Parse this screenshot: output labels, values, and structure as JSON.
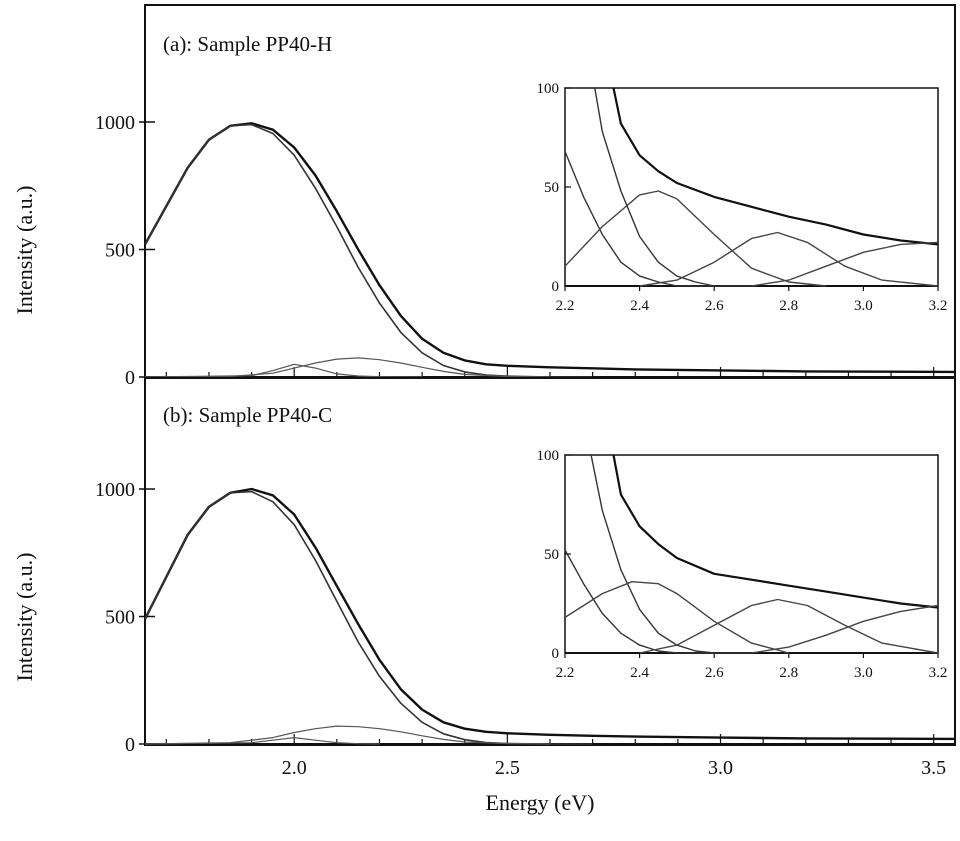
{
  "chart_data": [
    {
      "type": "line",
      "title": "(a): Sample PP40-H",
      "xlabel": "",
      "ylabel": "Intensity (a.u.)",
      "xlim": [
        1.65,
        3.55
      ],
      "ylim": [
        0,
        1000
      ],
      "yticks": [
        0,
        500,
        1000
      ],
      "ytick_labels": [
        "0",
        "500",
        "1000"
      ],
      "xticks": [
        2.0,
        2.5,
        3.0,
        3.5
      ],
      "grid": false,
      "series": [
        {
          "x": [
            1.65,
            1.75,
            1.8,
            1.85,
            1.9,
            1.95,
            2.0,
            2.05,
            2.1,
            2.15,
            2.2,
            2.25,
            2.3,
            2.35,
            2.4,
            2.45,
            2.5,
            2.6,
            2.7,
            2.8,
            3.0,
            3.2,
            3.55
          ],
          "values": [
            520,
            820,
            930,
            985,
            995,
            970,
            900,
            790,
            650,
            500,
            360,
            240,
            150,
            95,
            65,
            50,
            44,
            38,
            34,
            30,
            26,
            22,
            20
          ]
        },
        {
          "x": [
            1.65,
            1.75,
            1.8,
            1.85,
            1.9,
            1.95,
            2.0,
            2.05,
            2.1,
            2.15,
            2.2,
            2.25,
            2.3,
            2.35,
            2.4,
            2.45,
            2.5,
            2.6,
            2.7
          ],
          "values": [
            520,
            820,
            930,
            985,
            990,
            955,
            870,
            740,
            590,
            430,
            290,
            175,
            95,
            45,
            20,
            8,
            3,
            0,
            0
          ]
        },
        {
          "x": [
            1.65,
            1.9,
            1.95,
            2.0,
            2.05,
            2.1,
            2.15,
            2.2,
            2.3
          ],
          "values": [
            0,
            5,
            25,
            50,
            35,
            12,
            4,
            1,
            0
          ]
        },
        {
          "x": [
            1.65,
            1.85,
            1.95,
            2.0,
            2.05,
            2.1,
            2.15,
            2.2,
            2.25,
            2.3,
            2.35,
            2.4,
            2.5,
            2.6
          ],
          "values": [
            0,
            2,
            15,
            35,
            55,
            70,
            75,
            68,
            55,
            38,
            22,
            10,
            2,
            0
          ]
        }
      ],
      "inset": {
        "xlim": [
          2.2,
          3.2
        ],
        "ylim": [
          0,
          100
        ],
        "xticks": [
          2.2,
          2.4,
          2.6,
          2.8,
          3.0,
          3.2
        ],
        "xtick_labels": [
          "2.2",
          "2.4",
          "2.6",
          "2.8",
          "3.0",
          "3.2"
        ],
        "yticks": [
          0,
          50,
          100
        ],
        "ytick_labels": [
          "0",
          "50",
          "100"
        ],
        "series": [
          {
            "x": [
              2.33,
              2.35,
              2.4,
              2.45,
              2.5,
              2.6,
              2.7,
              2.8,
              2.9,
              3.0,
              3.1,
              3.2
            ],
            "values": [
              100,
              82,
              66,
              58,
              52,
              45,
              40,
              35,
              31,
              26,
              23,
              21
            ]
          },
          {
            "x": [
              2.28,
              2.3,
              2.35,
              2.4,
              2.45,
              2.5,
              2.55,
              2.6,
              2.7
            ],
            "values": [
              100,
              78,
              48,
              25,
              12,
              5,
              2,
              0,
              0
            ]
          },
          {
            "x": [
              2.2,
              2.25,
              2.3,
              2.35,
              2.4,
              2.45,
              2.5,
              2.6
            ],
            "values": [
              68,
              45,
              26,
              12,
              5,
              2,
              0,
              0
            ]
          },
          {
            "x": [
              2.2,
              2.3,
              2.4,
              2.45,
              2.5,
              2.6,
              2.7,
              2.8,
              2.9
            ],
            "values": [
              10,
              30,
              46,
              48,
              44,
              26,
              9,
              2,
              0
            ]
          },
          {
            "x": [
              2.4,
              2.5,
              2.6,
              2.7,
              2.77,
              2.85,
              2.95,
              3.05,
              3.2
            ],
            "values": [
              0,
              3,
              12,
              24,
              27,
              22,
              10,
              3,
              0
            ]
          },
          {
            "x": [
              2.7,
              2.8,
              2.9,
              3.0,
              3.1,
              3.2
            ],
            "values": [
              0,
              3,
              10,
              17,
              21,
              22
            ]
          }
        ]
      }
    },
    {
      "type": "line",
      "title": "(b): Sample PP40-C",
      "xlabel": "Energy (eV)",
      "ylabel": "Intensity (a.u.)",
      "xlim": [
        1.65,
        3.55
      ],
      "ylim": [
        0,
        1000
      ],
      "yticks": [
        0,
        500,
        1000
      ],
      "ytick_labels": [
        "0",
        "500",
        "1000"
      ],
      "xticks": [
        2.0,
        2.5,
        3.0,
        3.5
      ],
      "xtick_labels": [
        "2.0",
        "2.5",
        "3.0",
        "3.5"
      ],
      "grid": false,
      "series": [
        {
          "x": [
            1.65,
            1.75,
            1.8,
            1.85,
            1.9,
            1.95,
            2.0,
            2.05,
            2.1,
            2.15,
            2.2,
            2.25,
            2.3,
            2.35,
            2.4,
            2.45,
            2.5,
            2.6,
            2.7,
            2.8,
            3.0,
            3.2,
            3.55
          ],
          "values": [
            490,
            820,
            930,
            985,
            1000,
            975,
            900,
            770,
            620,
            470,
            330,
            215,
            135,
            85,
            60,
            48,
            42,
            36,
            32,
            29,
            25,
            22,
            20
          ]
        },
        {
          "x": [
            1.65,
            1.75,
            1.8,
            1.85,
            1.9,
            1.95,
            2.0,
            2.05,
            2.1,
            2.15,
            2.2,
            2.25,
            2.3,
            2.35,
            2.4,
            2.45,
            2.5,
            2.6,
            2.7
          ],
          "values": [
            490,
            820,
            930,
            985,
            990,
            950,
            860,
            720,
            560,
            400,
            265,
            160,
            85,
            40,
            17,
            6,
            2,
            0,
            0
          ]
        },
        {
          "x": [
            1.65,
            1.9,
            1.95,
            2.0,
            2.05,
            2.1,
            2.15,
            2.2
          ],
          "values": [
            0,
            5,
            15,
            25,
            15,
            5,
            1,
            0
          ]
        },
        {
          "x": [
            1.65,
            1.85,
            1.95,
            2.0,
            2.05,
            2.1,
            2.15,
            2.2,
            2.25,
            2.3,
            2.35,
            2.4,
            2.5,
            2.6
          ],
          "values": [
            0,
            5,
            25,
            45,
            60,
            70,
            68,
            60,
            48,
            32,
            18,
            8,
            2,
            0
          ]
        }
      ],
      "inset": {
        "xlim": [
          2.2,
          3.2
        ],
        "ylim": [
          0,
          100
        ],
        "xticks": [
          2.2,
          2.4,
          2.6,
          2.8,
          3.0,
          3.2
        ],
        "xtick_labels": [
          "2.2",
          "2.4",
          "2.6",
          "2.8",
          "3.0",
          "3.2"
        ],
        "yticks": [
          0,
          50,
          100
        ],
        "ytick_labels": [
          "0",
          "50",
          "100"
        ],
        "series": [
          {
            "x": [
              2.33,
              2.35,
              2.4,
              2.45,
              2.5,
              2.6,
              2.7,
              2.8,
              2.9,
              3.0,
              3.1,
              3.2
            ],
            "values": [
              100,
              80,
              64,
              55,
              48,
              40,
              37,
              34,
              31,
              28,
              25,
              23
            ]
          },
          {
            "x": [
              2.27,
              2.3,
              2.35,
              2.4,
              2.45,
              2.5,
              2.55,
              2.6,
              2.7
            ],
            "values": [
              100,
              72,
              42,
              22,
              10,
              4,
              1,
              0,
              0
            ]
          },
          {
            "x": [
              2.2,
              2.25,
              2.3,
              2.35,
              2.4,
              2.45,
              2.5,
              2.6
            ],
            "values": [
              52,
              35,
              20,
              10,
              4,
              1,
              0,
              0
            ]
          },
          {
            "x": [
              2.2,
              2.3,
              2.38,
              2.45,
              2.5,
              2.6,
              2.7,
              2.8
            ],
            "values": [
              18,
              30,
              36,
              35,
              30,
              16,
              5,
              0
            ]
          },
          {
            "x": [
              2.4,
              2.5,
              2.6,
              2.7,
              2.77,
              2.85,
              2.95,
              3.05,
              3.2
            ],
            "values": [
              0,
              4,
              14,
              24,
              27,
              24,
              14,
              5,
              0
            ]
          },
          {
            "x": [
              2.7,
              2.8,
              2.9,
              3.0,
              3.1,
              3.2
            ],
            "values": [
              0,
              3,
              9,
              16,
              21,
              24
            ]
          }
        ]
      }
    }
  ]
}
